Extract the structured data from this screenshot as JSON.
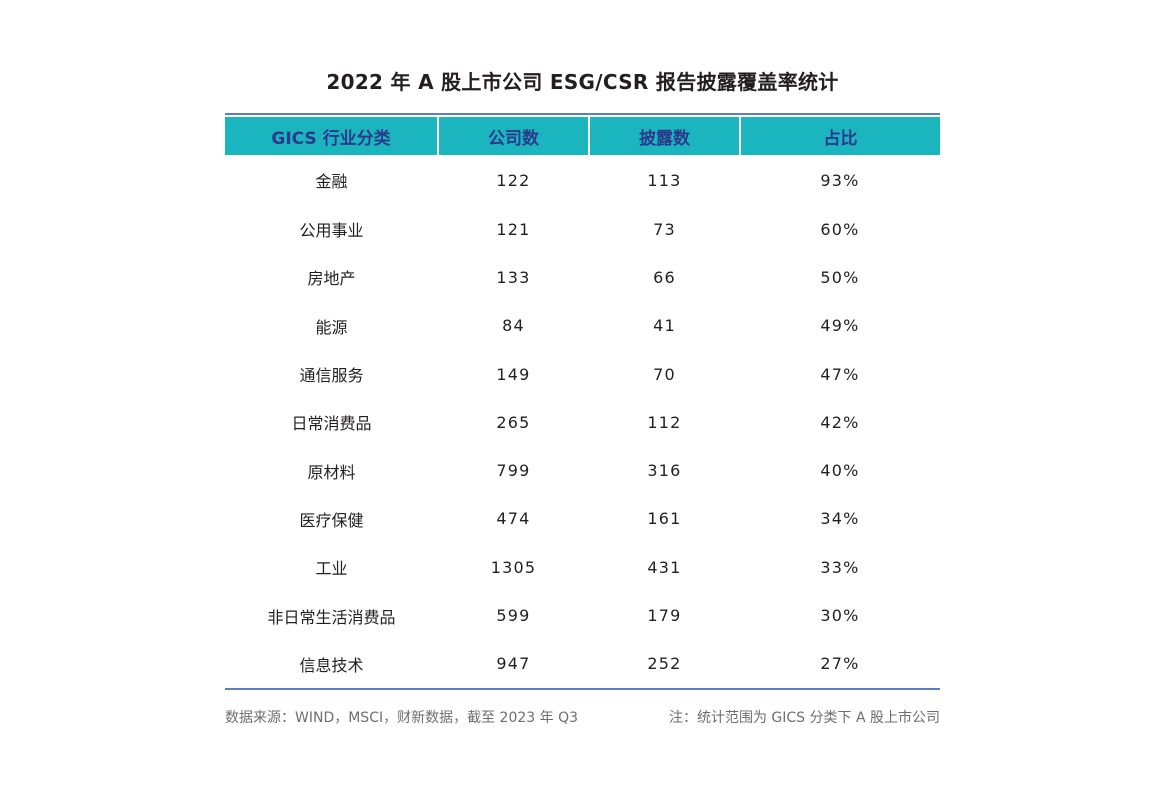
{
  "title": "2022 年 A 股上市公司 ESG/CSR 报告披露覆盖率统计",
  "table": {
    "headers": [
      "GICS 行业分类",
      "公司数",
      "披露数",
      "占比"
    ],
    "rows": [
      [
        "金融",
        "122",
        "113",
        "93%"
      ],
      [
        "公用事业",
        "121",
        "73",
        "60%"
      ],
      [
        "房地产",
        "133",
        "66",
        "50%"
      ],
      [
        "能源",
        "84",
        "41",
        "49%"
      ],
      [
        "通信服务",
        "149",
        "70",
        "47%"
      ],
      [
        "日常消费品",
        "265",
        "112",
        "42%"
      ],
      [
        "原材料",
        "799",
        "316",
        "40%"
      ],
      [
        "医疗保健",
        "474",
        "161",
        "34%"
      ],
      [
        "工业",
        "1305",
        "431",
        "33%"
      ],
      [
        "非日常生活消费品",
        "599",
        "179",
        "30%"
      ],
      [
        "信息技术",
        "947",
        "252",
        "27%"
      ]
    ]
  },
  "footer": {
    "source": "数据来源：WIND，MSCI，财新数据，截至 2023 年 Q3",
    "note": "注：统计范围为 GICS 分类下 A 股上市公司"
  },
  "colors": {
    "header_bg": "#1ab5bf",
    "header_text": "#2b3a8c",
    "rule": "#5b7fb8"
  }
}
